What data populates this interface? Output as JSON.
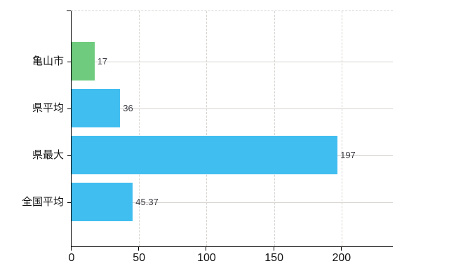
{
  "chart_data": {
    "type": "bar",
    "orientation": "horizontal",
    "title": "",
    "categories": [
      "亀山市",
      "県平均",
      "県最大",
      "全国平均"
    ],
    "values": [
      17,
      36,
      197,
      45.37
    ],
    "value_labels": [
      "17",
      "36",
      "197",
      "45.37"
    ],
    "bar_colors": [
      "#6fcb7e",
      "#41bef0",
      "#41bef0",
      "#41bef0"
    ],
    "x_ticks": [
      0,
      50,
      100,
      150,
      200
    ],
    "x_tick_labels": [
      "0",
      "50",
      "100",
      "150",
      "200"
    ],
    "xlim": [
      0,
      238
    ],
    "grid": {
      "vertical_lines": "dashed",
      "horizontal_category_lines": "solid",
      "top_border": "dashed"
    },
    "legend_position": "none"
  },
  "colors": {
    "bar_blue": "#41bef0",
    "bar_green": "#6fcb7e",
    "gridline": "#d6d3cf",
    "axis_line": "#000000",
    "value_label_text": "#3c3c44",
    "axis_label_text": "#111111",
    "background": "#ffffff"
  }
}
